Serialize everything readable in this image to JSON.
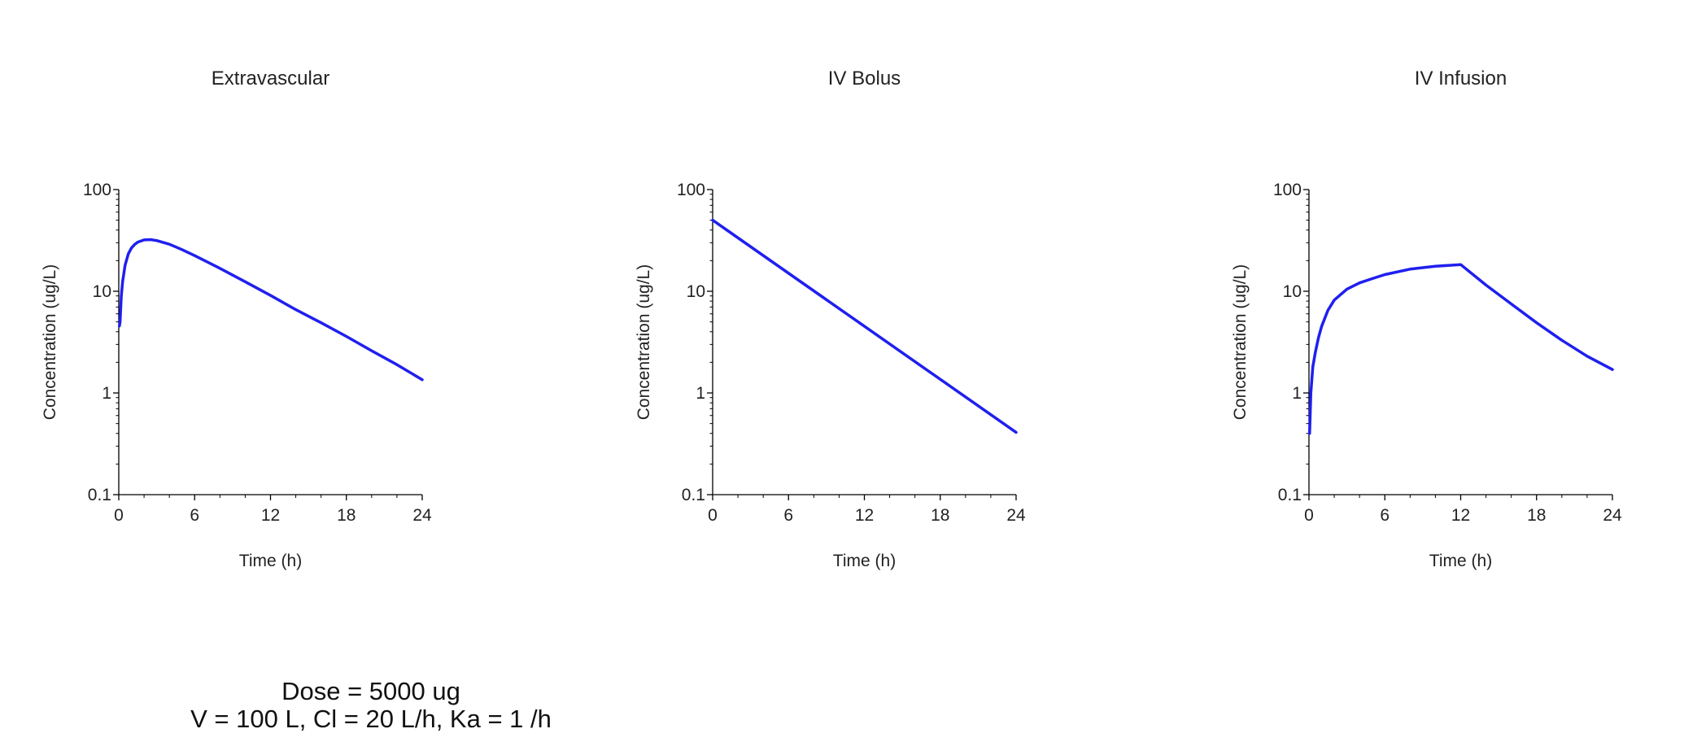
{
  "chart_data": [
    {
      "type": "line",
      "title": "Extravascular",
      "xlabel": "Time (h)",
      "ylabel": "Concentration (ug/L)",
      "xlim": [
        0,
        24
      ],
      "ylim": [
        0.1,
        100
      ],
      "yscale": "log",
      "xticks": [
        0,
        6,
        12,
        18,
        24
      ],
      "yticks": [
        0.1,
        1,
        10,
        100
      ],
      "ytick_labels": [
        "0.1",
        "1",
        "10",
        "100"
      ],
      "grid": false,
      "line_color": "#1f1fef",
      "series": [
        {
          "x": [
            0.05,
            0.1,
            0.2,
            0.3,
            0.5,
            0.75,
            1,
            1.25,
            1.5,
            2,
            2.5,
            3,
            4,
            5,
            6,
            8,
            10,
            12,
            14,
            16,
            18,
            20,
            22,
            24
          ],
          "y": [
            4.56,
            5.0,
            9.0,
            12.4,
            18.1,
            23.3,
            26.6,
            28.8,
            30.4,
            32.0,
            32.2,
            31.5,
            29.0,
            25.7,
            22.4,
            16.8,
            12.4,
            9.1,
            6.6,
            4.9,
            3.6,
            2.6,
            1.9,
            1.35
          ]
        }
      ]
    },
    {
      "type": "line",
      "title": "IV Bolus",
      "xlabel": "Time (h)",
      "ylabel": "Concentration (ug/L)",
      "xlim": [
        0,
        24
      ],
      "ylim": [
        0.1,
        100
      ],
      "yscale": "log",
      "xticks": [
        0,
        6,
        12,
        18,
        24
      ],
      "yticks": [
        0.1,
        1,
        10,
        100
      ],
      "ytick_labels": [
        "0.1",
        "1",
        "10",
        "100"
      ],
      "grid": false,
      "line_color": "#1f1fef",
      "series": [
        {
          "x": [
            0,
            24
          ],
          "y": [
            50,
            0.41
          ]
        }
      ]
    },
    {
      "type": "line",
      "title": "IV Infusion",
      "xlabel": "Time (h)",
      "ylabel": "Concentration (ug/L)",
      "xlim": [
        0,
        24
      ],
      "ylim": [
        0.1,
        100
      ],
      "yscale": "log",
      "xticks": [
        0,
        6,
        12,
        18,
        24
      ],
      "yticks": [
        0.1,
        1,
        10,
        100
      ],
      "ytick_labels": [
        "0.1",
        "1",
        "10",
        "100"
      ],
      "grid": false,
      "line_color": "#1f1fef",
      "series": [
        {
          "x": [
            0.05,
            0.15,
            0.3,
            0.5,
            0.75,
            1,
            1.5,
            2,
            3,
            4,
            5,
            6,
            8,
            10,
            12,
            14,
            16,
            18,
            20,
            22,
            24
          ],
          "y": [
            0.4,
            1.0,
            1.8,
            2.5,
            3.5,
            4.5,
            6.5,
            8.2,
            10.5,
            12.1,
            13.3,
            14.6,
            16.5,
            17.6,
            18.3,
            11.5,
            7.5,
            4.9,
            3.3,
            2.3,
            1.7
          ]
        }
      ]
    }
  ],
  "footer": {
    "line1": "Dose = 5000 ug",
    "line2": "V = 100 L, Cl = 20 L/h, Ka = 1 /h"
  }
}
